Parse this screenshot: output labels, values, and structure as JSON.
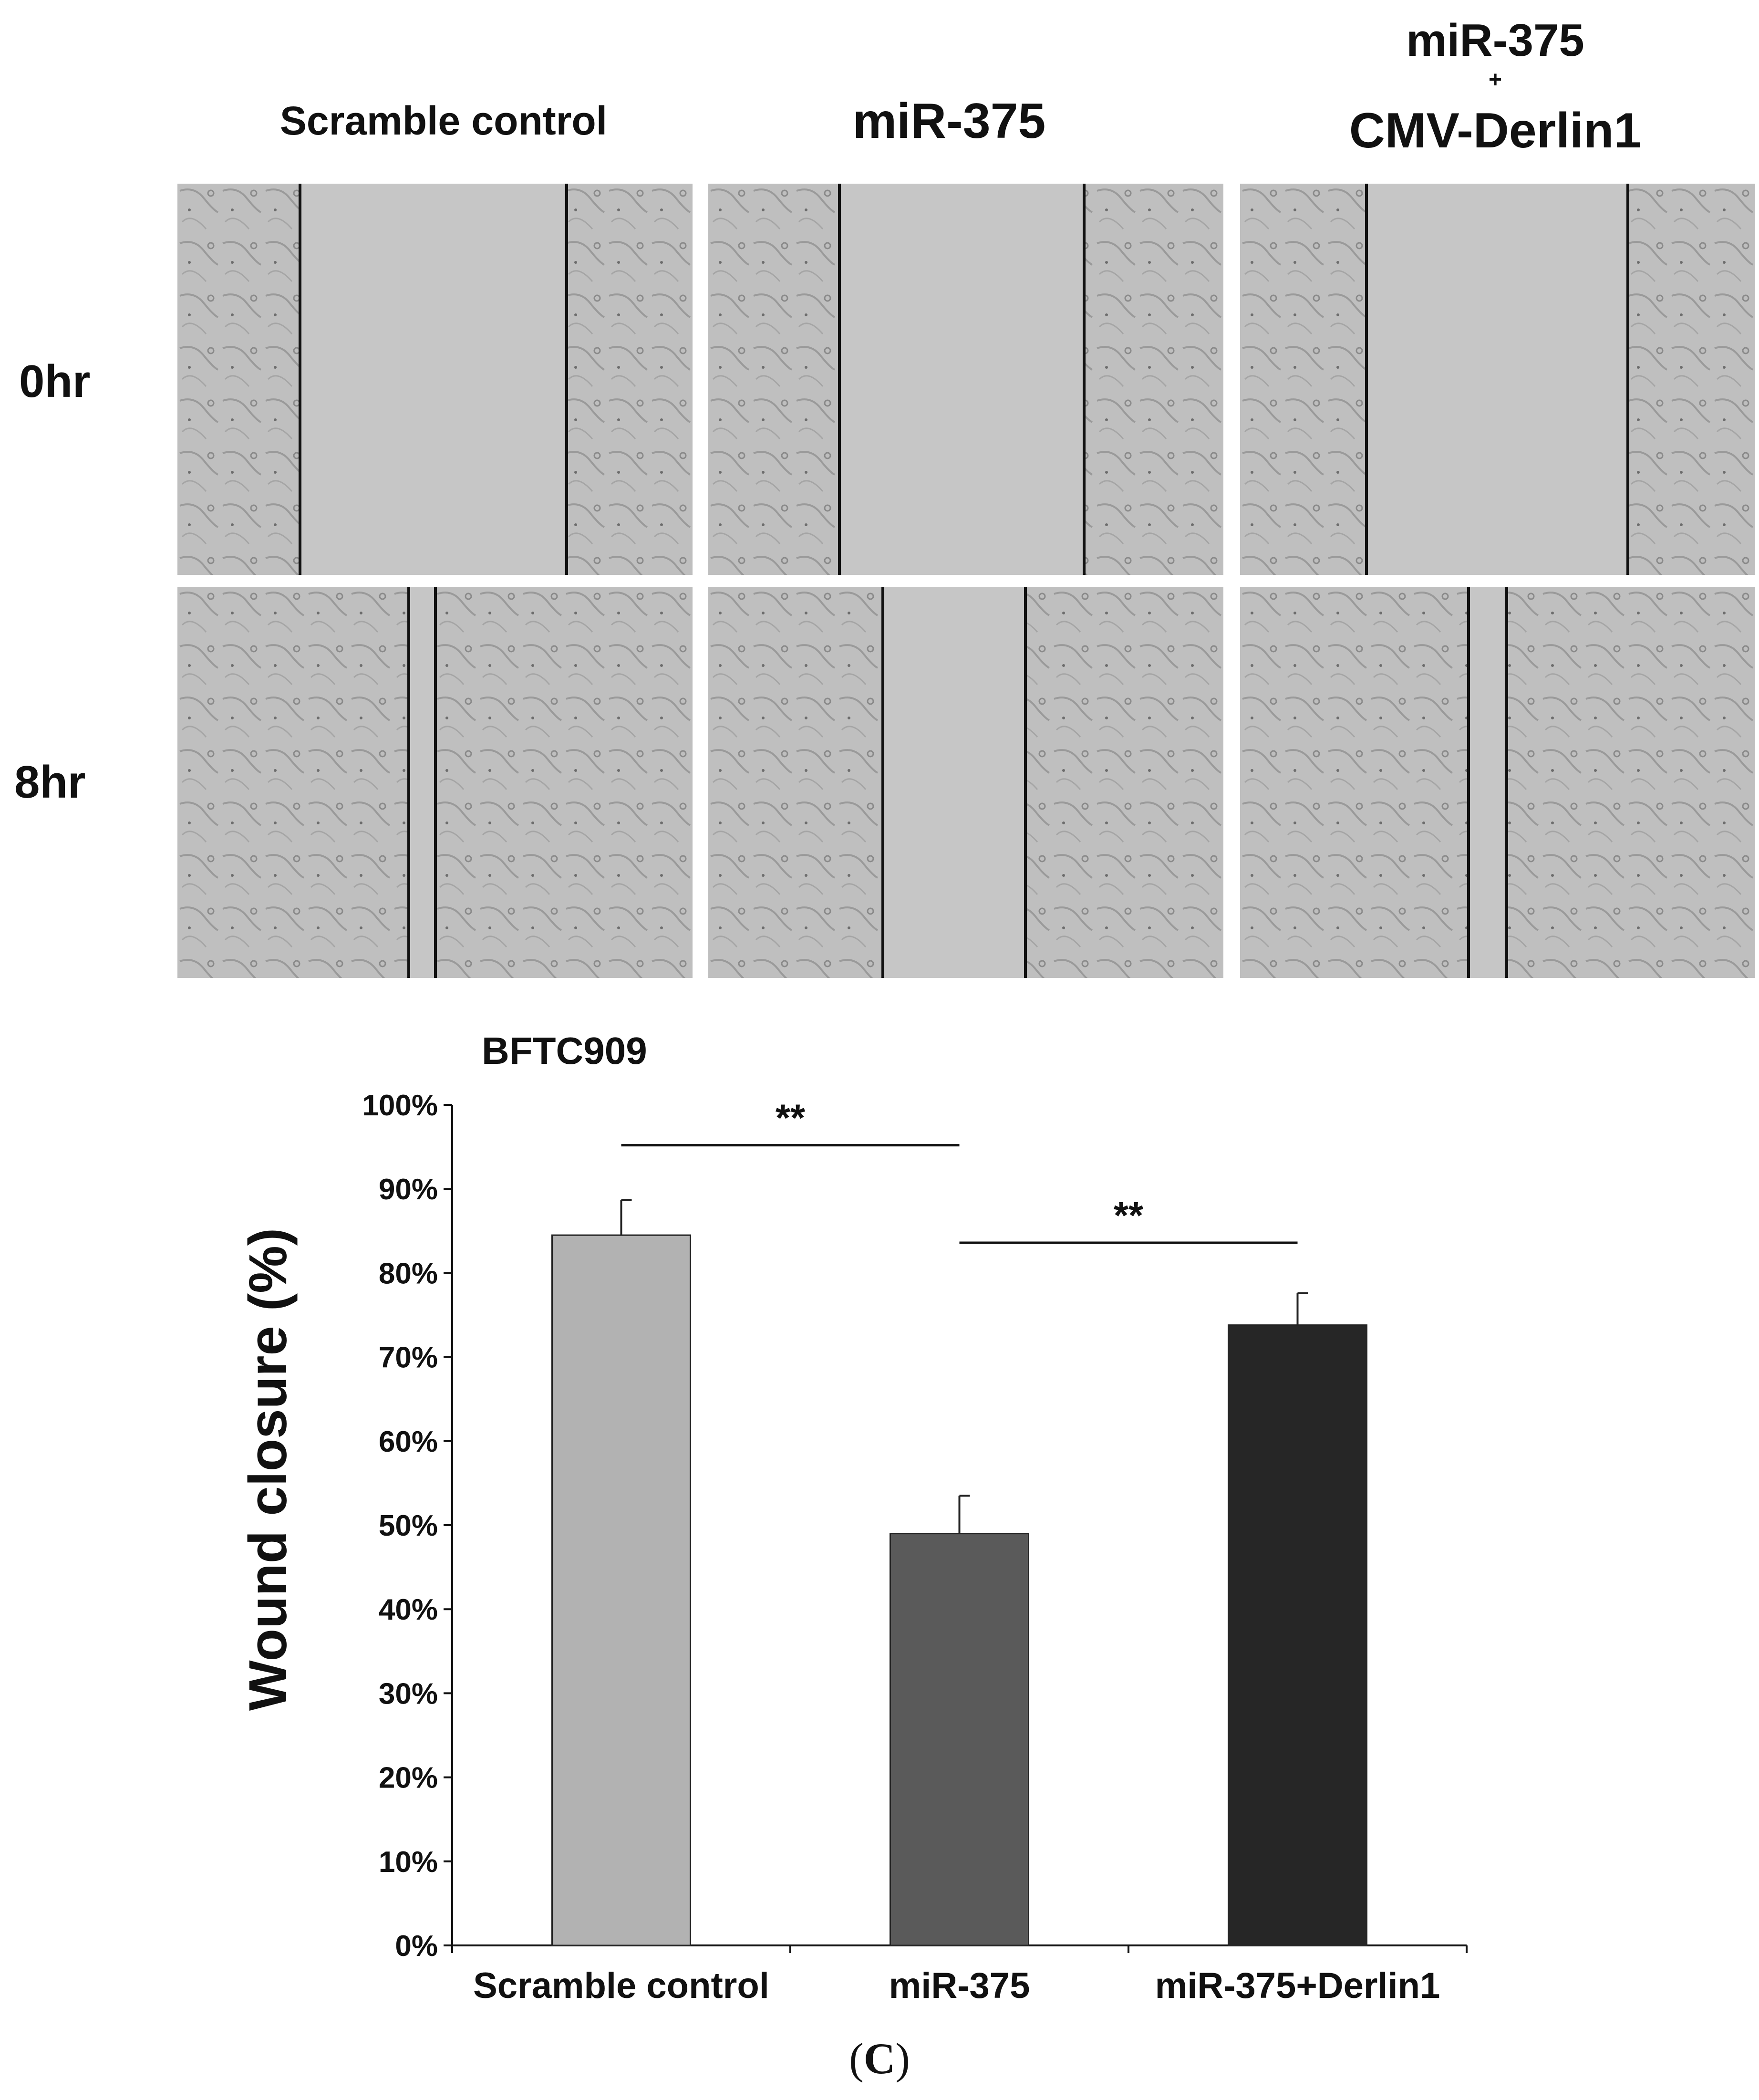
{
  "figure": {
    "column_titles": {
      "scramble": "Scramble control",
      "mir375": "miR-375",
      "combo_line1": "miR-375",
      "combo_plus": "+",
      "combo_line2": "CMV-Derlin1"
    },
    "row_labels": [
      "0hr",
      "8hr"
    ],
    "panel_kind": "wound-healing-micrograph"
  },
  "chart_data": {
    "type": "bar",
    "title": "BFTC909",
    "ylabel": "Wound closure (%)",
    "xlabel": "",
    "categories": [
      "Scramble control",
      "miR-375",
      "miR-375+Derlin1"
    ],
    "values": [
      84.5,
      49.0,
      73.8
    ],
    "errors": [
      4.2,
      4.5,
      3.8
    ],
    "bar_colors": [
      "#b2b2b2",
      "#5a5a5a",
      "#262626"
    ],
    "ylim": [
      0,
      100
    ],
    "yticks": [
      "0%",
      "10%",
      "20%",
      "30%",
      "40%",
      "50%",
      "60%",
      "70%",
      "80%",
      "90%",
      "100%"
    ],
    "significance": [
      {
        "from": 0,
        "to": 1,
        "label": "**"
      },
      {
        "from": 1,
        "to": 2,
        "label": "**"
      }
    ],
    "grid": false,
    "legend": "none"
  },
  "caption": {
    "open": "(",
    "letter": "C",
    "close": ")"
  }
}
